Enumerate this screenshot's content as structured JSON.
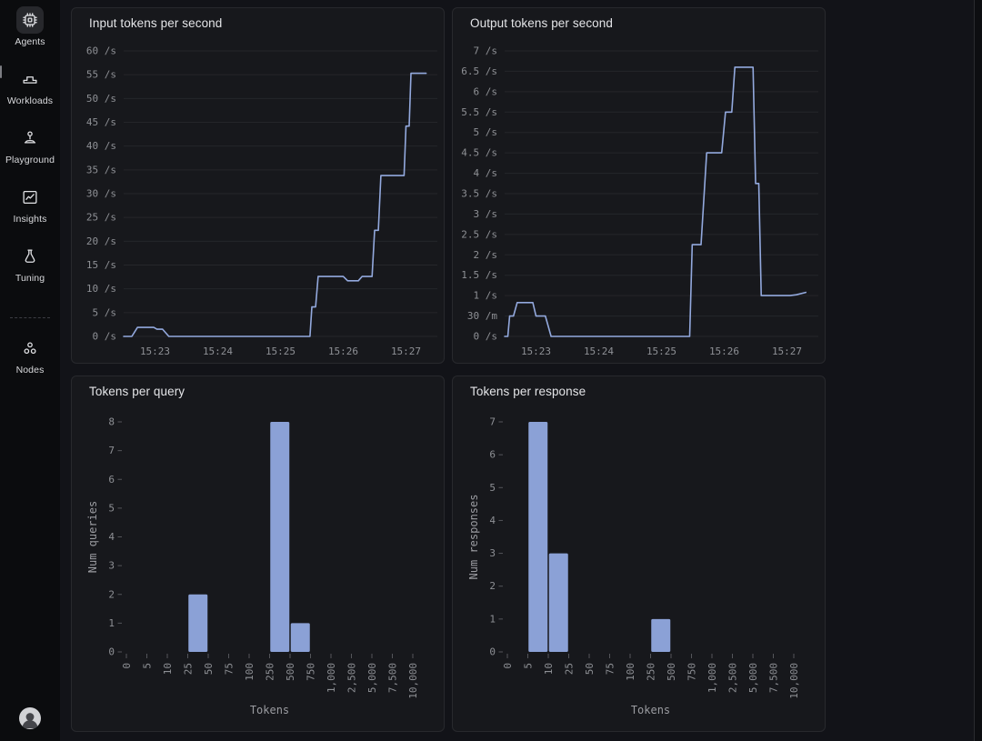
{
  "sidebar": {
    "items": [
      {
        "label": "Agents",
        "icon": "chip-icon",
        "active": true
      },
      {
        "label": "Workloads",
        "icon": "workbench-icon",
        "active": false
      },
      {
        "label": "Playground",
        "icon": "joystick-icon",
        "active": false
      },
      {
        "label": "Insights",
        "icon": "line-chart-icon",
        "active": false
      },
      {
        "label": "Tuning",
        "icon": "flask-icon",
        "active": false
      },
      {
        "label": "Nodes",
        "icon": "nodes-icon",
        "active": false
      }
    ]
  },
  "theme": {
    "page_bg": "#121318",
    "sidebar_bg": "#0b0c0e",
    "panel_bg": "#17181c",
    "panel_border": "#28292d",
    "grid": "#25262a",
    "tick_text": "#8e9095",
    "title_text": "#e4e5e8",
    "accent_line": "#93a9de",
    "accent_bar": "#8ba1d6",
    "tick_mark": "#54555a"
  },
  "chart_data": [
    {
      "type": "line",
      "title": "Input tokens per second",
      "xlim": [
        22.5,
        27.5
      ],
      "ylim": [
        0,
        60
      ],
      "x_ticks": [
        "15:23",
        "15:24",
        "15:25",
        "15:26",
        "15:27"
      ],
      "x_tick_minutes": [
        23,
        24,
        25,
        26,
        27
      ],
      "y_ticks": [
        {
          "value": 0,
          "label": "0 /s"
        },
        {
          "value": 5,
          "label": "5 /s"
        },
        {
          "value": 10,
          "label": "10 /s"
        },
        {
          "value": 15,
          "label": "15 /s"
        },
        {
          "value": 20,
          "label": "20 /s"
        },
        {
          "value": 25,
          "label": "25 /s"
        },
        {
          "value": 30,
          "label": "30 /s"
        },
        {
          "value": 35,
          "label": "35 /s"
        },
        {
          "value": 40,
          "label": "40 /s"
        },
        {
          "value": 45,
          "label": "45 /s"
        },
        {
          "value": 50,
          "label": "50 /s"
        },
        {
          "value": 55,
          "label": "55 /s"
        },
        {
          "value": 60,
          "label": "60 /s"
        }
      ],
      "series": [
        {
          "name": "input tokens per second",
          "points": [
            [
              22.5,
              0
            ],
            [
              22.63,
              0
            ],
            [
              22.72,
              1.9
            ],
            [
              22.98,
              1.9
            ],
            [
              23.03,
              1.5
            ],
            [
              23.12,
              1.5
            ],
            [
              23.22,
              0
            ],
            [
              25.47,
              0
            ],
            [
              25.5,
              6.2
            ],
            [
              25.56,
              6.2
            ],
            [
              25.6,
              12.6
            ],
            [
              26.0,
              12.6
            ],
            [
              26.07,
              11.7
            ],
            [
              26.24,
              11.7
            ],
            [
              26.3,
              12.6
            ],
            [
              26.46,
              12.6
            ],
            [
              26.5,
              22.3
            ],
            [
              26.56,
              22.3
            ],
            [
              26.6,
              33.8
            ],
            [
              26.97,
              33.8
            ],
            [
              27.0,
              44.2
            ],
            [
              27.05,
              44.2
            ],
            [
              27.08,
              55.3
            ],
            [
              27.32,
              55.3
            ]
          ]
        }
      ]
    },
    {
      "type": "line",
      "title": "Output tokens per second",
      "xlim": [
        22.5,
        27.5
      ],
      "ylim": [
        0,
        7
      ],
      "x_ticks": [
        "15:23",
        "15:24",
        "15:25",
        "15:26",
        "15:27"
      ],
      "x_tick_minutes": [
        23,
        24,
        25,
        26,
        27
      ],
      "y_ticks": [
        {
          "value": 0,
          "label": "0 /s"
        },
        {
          "value": 0.5,
          "label": "30 /m"
        },
        {
          "value": 1,
          "label": "1 /s"
        },
        {
          "value": 1.5,
          "label": "1.5 /s"
        },
        {
          "value": 2,
          "label": "2 /s"
        },
        {
          "value": 2.5,
          "label": "2.5 /s"
        },
        {
          "value": 3,
          "label": "3 /s"
        },
        {
          "value": 3.5,
          "label": "3.5 /s"
        },
        {
          "value": 4,
          "label": "4 /s"
        },
        {
          "value": 4.5,
          "label": "4.5 /s"
        },
        {
          "value": 5,
          "label": "5 /s"
        },
        {
          "value": 5.5,
          "label": "5.5 /s"
        },
        {
          "value": 6,
          "label": "6 /s"
        },
        {
          "value": 6.5,
          "label": "6.5 /s"
        },
        {
          "value": 7,
          "label": "7 /s"
        }
      ],
      "series": [
        {
          "name": "output tokens per second",
          "points": [
            [
              22.5,
              0
            ],
            [
              22.55,
              0
            ],
            [
              22.58,
              0.5
            ],
            [
              22.64,
              0.5
            ],
            [
              22.7,
              0.83
            ],
            [
              22.95,
              0.83
            ],
            [
              23.0,
              0.5
            ],
            [
              23.15,
              0.5
            ],
            [
              23.24,
              0
            ],
            [
              25.45,
              0
            ],
            [
              25.49,
              2.25
            ],
            [
              25.63,
              2.25
            ],
            [
              25.72,
              4.5
            ],
            [
              25.96,
              4.5
            ],
            [
              26.02,
              5.5
            ],
            [
              26.12,
              5.5
            ],
            [
              26.17,
              6.6
            ],
            [
              26.46,
              6.6
            ],
            [
              26.5,
              3.75
            ],
            [
              26.55,
              3.75
            ],
            [
              26.59,
              1.0
            ],
            [
              27.05,
              1.0
            ],
            [
              27.15,
              1.02
            ],
            [
              27.3,
              1.08
            ]
          ]
        }
      ]
    },
    {
      "type": "bar",
      "title": "Tokens per query",
      "xlabel": "Tokens",
      "ylabel": "Num queries",
      "ylim": [
        0,
        8
      ],
      "x_ticks": [
        "0",
        "5",
        "10",
        "25",
        "50",
        "75",
        "100",
        "250",
        "500",
        "750",
        "1,000",
        "2,500",
        "5,000",
        "7,500",
        "10,000"
      ],
      "bars": [
        {
          "from": "25",
          "to": "50",
          "count": 2
        },
        {
          "from": "250",
          "to": "500",
          "count": 8
        },
        {
          "from": "500",
          "to": "750",
          "count": 1
        }
      ]
    },
    {
      "type": "bar",
      "title": "Tokens per response",
      "xlabel": "Tokens",
      "ylabel": "Num responses",
      "ylim": [
        0,
        7
      ],
      "x_ticks": [
        "0",
        "5",
        "10",
        "25",
        "50",
        "75",
        "100",
        "250",
        "500",
        "750",
        "1,000",
        "2,500",
        "5,000",
        "7,500",
        "10,000"
      ],
      "bars": [
        {
          "from": "5",
          "to": "10",
          "count": 7
        },
        {
          "from": "10",
          "to": "25",
          "count": 3
        },
        {
          "from": "250",
          "to": "500",
          "count": 1
        }
      ]
    }
  ]
}
